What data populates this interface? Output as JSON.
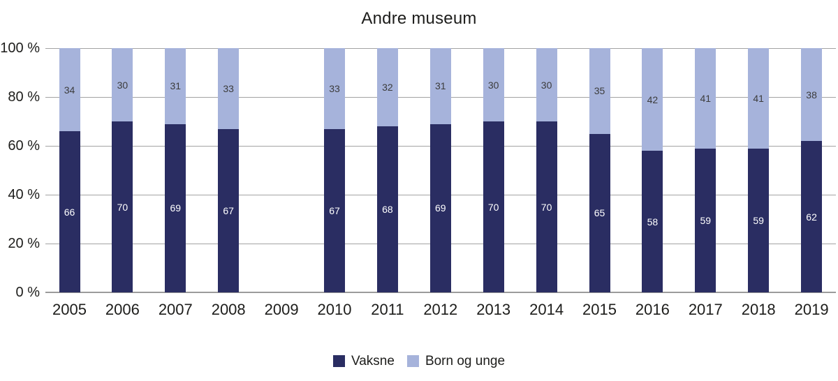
{
  "chart_data": {
    "type": "bar",
    "subtype": "stacked-percentage-column",
    "title": "Andre museum",
    "categories": [
      "2005",
      "2006",
      "2007",
      "2008",
      "2009",
      "2010",
      "2011",
      "2012",
      "2013",
      "2014",
      "2015",
      "2016",
      "2017",
      "2018",
      "2019"
    ],
    "series": [
      {
        "name": "Vaksne",
        "color": "#2a2d62",
        "label_color": "#ffffff",
        "values": [
          66,
          70,
          69,
          67,
          null,
          67,
          68,
          69,
          70,
          70,
          65,
          58,
          59,
          59,
          62
        ]
      },
      {
        "name": "Born og unge",
        "color": "#a6b3db",
        "label_color": "#3c3c3c",
        "values": [
          34,
          30,
          31,
          33,
          null,
          33,
          32,
          31,
          30,
          30,
          35,
          42,
          41,
          41,
          38
        ]
      }
    ],
    "y_ticks": [
      {
        "value": 0,
        "label": "0 %"
      },
      {
        "value": 20,
        "label": "20 %"
      },
      {
        "value": 40,
        "label": "40 %"
      },
      {
        "value": 60,
        "label": "60 %"
      },
      {
        "value": 80,
        "label": "80 %"
      },
      {
        "value": 100,
        "label": "100 %"
      }
    ],
    "ylim": [
      0,
      100
    ],
    "xlabel": "",
    "ylabel": "",
    "grid": true,
    "gridline_color": "#a3a3a3",
    "legend_position": "bottom-center",
    "missing_data_years": [
      "2009"
    ]
  }
}
